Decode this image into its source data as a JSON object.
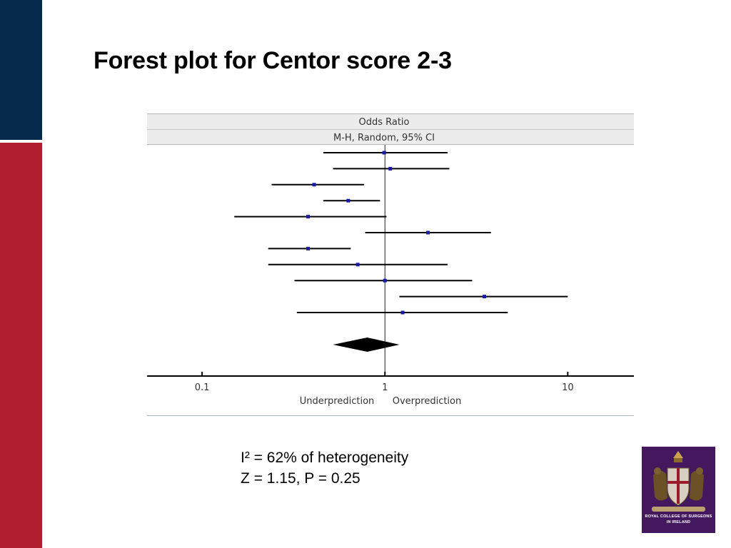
{
  "slide": {
    "title": "Forest plot for Centor score 2-3",
    "colors": {
      "navy_bar": "#062a4c",
      "red_bar": "#b01e30",
      "logo_bg": "#44185f"
    }
  },
  "chart_data": {
    "type": "forest",
    "header_line1": "Odds Ratio",
    "header_line2": "M-H, Random, 95% CI",
    "x_scale": "log",
    "xlim": [
      0.05,
      23
    ],
    "x_ticks": [
      "0.1",
      "1",
      "10"
    ],
    "reference_line": 1,
    "xlabel_left": "Underprediction",
    "xlabel_right": "Overprediction",
    "studies": [
      {
        "or": 0.99,
        "ci": [
          0.46,
          2.2
        ]
      },
      {
        "or": 1.07,
        "ci": [
          0.52,
          2.25
        ]
      },
      {
        "or": 0.41,
        "ci": [
          0.24,
          0.77
        ]
      },
      {
        "or": 0.63,
        "ci": [
          0.46,
          0.94
        ]
      },
      {
        "or": 0.38,
        "ci": [
          0.15,
          1.02
        ]
      },
      {
        "or": 1.72,
        "ci": [
          0.78,
          3.8
        ]
      },
      {
        "or": 0.38,
        "ci": [
          0.23,
          0.65
        ]
      },
      {
        "or": 0.71,
        "ci": [
          0.23,
          2.2
        ]
      },
      {
        "or": 1.0,
        "ci": [
          0.32,
          3.0
        ]
      },
      {
        "or": 3.5,
        "ci": [
          1.2,
          10.0
        ]
      },
      {
        "or": 1.25,
        "ci": [
          0.33,
          4.7
        ]
      }
    ],
    "pooled": {
      "or": 0.8,
      "ci": [
        0.52,
        1.2
      ]
    }
  },
  "stats": {
    "line1": "I² = 62% of heterogeneity",
    "line2": "Z = 1.15, P = 0.25"
  },
  "logo": {
    "caption1": "ROYAL COLLEGE OF SURGEONS",
    "caption2": "IN IRELAND"
  }
}
